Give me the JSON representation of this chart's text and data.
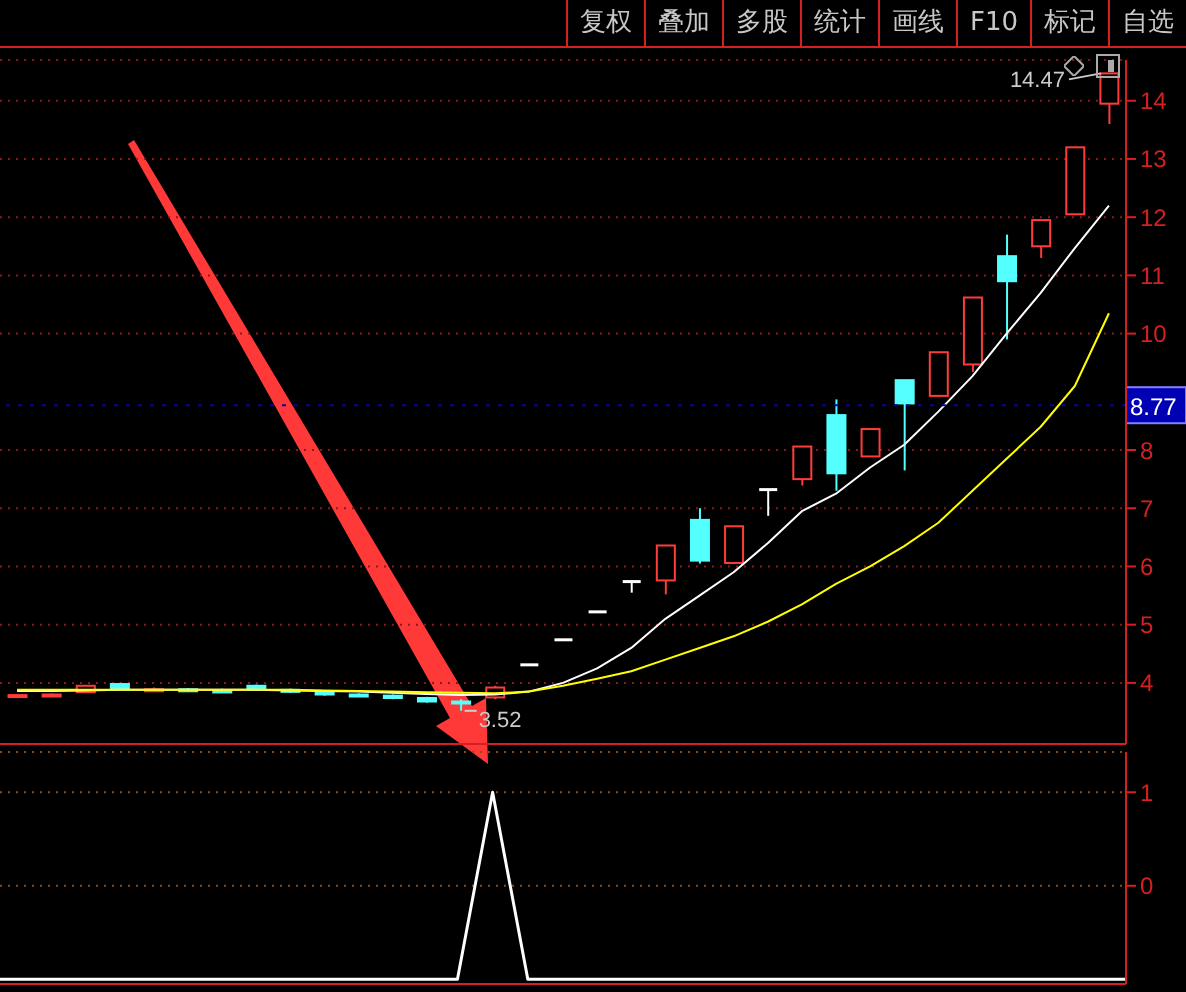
{
  "chart_data": [
    {
      "type": "candlestick",
      "categories": [
        null,
        null,
        null,
        null,
        null,
        null,
        null,
        null,
        null,
        null,
        null,
        null,
        null,
        null,
        null,
        null,
        null,
        null,
        null,
        null,
        null,
        null,
        null,
        null,
        null,
        null,
        null,
        null,
        null,
        null,
        null,
        null,
        null
      ],
      "ohlc": [
        [
          3.76,
          3.8,
          3.74,
          3.79
        ],
        [
          3.79,
          3.82,
          3.76,
          3.8
        ],
        [
          3.84,
          3.96,
          3.83,
          3.95
        ],
        [
          3.98,
          4.0,
          3.88,
          3.9
        ],
        [
          3.88,
          3.92,
          3.85,
          3.89
        ],
        [
          3.89,
          3.91,
          3.86,
          3.88
        ],
        [
          3.87,
          3.9,
          3.84,
          3.86
        ],
        [
          3.95,
          3.97,
          3.87,
          3.88
        ],
        [
          3.88,
          3.9,
          3.83,
          3.86
        ],
        [
          3.84,
          3.86,
          3.78,
          3.8
        ],
        [
          3.8,
          3.82,
          3.76,
          3.78
        ],
        [
          3.78,
          3.8,
          3.72,
          3.74
        ],
        [
          3.74,
          3.76,
          3.66,
          3.68
        ],
        [
          3.68,
          3.72,
          3.52,
          3.66
        ],
        [
          3.75,
          3.95,
          3.72,
          3.92
        ],
        [
          4.31,
          4.31,
          4.31,
          4.31
        ],
        [
          4.74,
          4.74,
          4.74,
          4.74
        ],
        [
          5.22,
          5.22,
          5.22,
          5.22
        ],
        [
          5.74,
          5.74,
          5.55,
          5.74
        ],
        [
          5.76,
          6.36,
          5.52,
          6.36
        ],
        [
          6.8,
          7.0,
          6.05,
          6.1
        ],
        [
          6.06,
          6.7,
          6.05,
          6.69
        ],
        [
          7.32,
          7.32,
          6.87,
          7.32
        ],
        [
          7.5,
          8.06,
          7.39,
          8.06
        ],
        [
          8.6,
          8.87,
          7.3,
          7.6
        ],
        [
          7.89,
          8.36,
          7.89,
          8.36
        ],
        [
          9.2,
          9.2,
          7.65,
          8.8
        ],
        [
          8.93,
          9.68,
          8.93,
          9.68
        ],
        [
          9.47,
          10.62,
          9.34,
          10.62
        ],
        [
          11.33,
          11.7,
          9.9,
          10.9
        ],
        [
          11.5,
          11.95,
          11.3,
          11.95
        ],
        [
          12.05,
          13.2,
          12.05,
          13.2
        ],
        [
          13.95,
          14.47,
          13.6,
          14.47
        ]
      ],
      "series": [
        {
          "type": "line",
          "color": "#ffffff",
          "values": [
            3.86,
            3.86,
            3.87,
            3.88,
            3.88,
            3.88,
            3.88,
            3.88,
            3.87,
            3.86,
            3.85,
            3.83,
            3.81,
            3.79,
            3.8,
            3.85,
            4.0,
            4.25,
            4.6,
            5.1,
            5.5,
            5.9,
            6.4,
            6.95,
            7.25,
            7.7,
            8.09,
            8.66,
            9.27,
            10.0,
            10.7,
            11.47,
            12.2
          ]
        },
        {
          "type": "line",
          "color": "#ffff00",
          "values": [
            3.88,
            3.88,
            3.88,
            3.88,
            3.88,
            3.88,
            3.88,
            3.88,
            3.88,
            3.87,
            3.86,
            3.85,
            3.84,
            3.83,
            3.82,
            3.85,
            3.95,
            4.07,
            4.2,
            4.4,
            4.6,
            4.8,
            5.05,
            5.35,
            5.7,
            6.0,
            6.35,
            6.75,
            7.3,
            7.85,
            8.4,
            9.1,
            10.35
          ]
        }
      ],
      "colors": [
        "#ff3c3c",
        "#ff3c3c",
        "#ff3c3c",
        "#54ffff",
        "#ff3c3c",
        "#54ffff",
        "#54ffff",
        "#54ffff",
        "#54ffff",
        "#54ffff",
        "#54ffff",
        "#54ffff",
        "#54ffff",
        "#54ffff",
        "#ff3c3c",
        "#ffffff",
        "#ffffff",
        "#ffffff",
        "#ffffff",
        "#ff3c3c",
        "#54ffff",
        "#ff3c3c",
        "#ffffff",
        "#ff3c3c",
        "#54ffff",
        "#ff3c3c",
        "#54ffff",
        "#ff3c3c",
        "#ff3c3c",
        "#54ffff",
        "#ff3c3c",
        "#ff3c3c",
        "#ff3c3c"
      ],
      "ylim": [
        2.95,
        14.7
      ],
      "yticks": [
        4,
        5,
        6,
        7,
        8,
        10,
        11,
        12,
        13,
        14
      ],
      "grid": "y",
      "tick_labels": "y",
      "legend": false,
      "ref_lines": [
        {
          "axis": "y",
          "value": 8.77,
          "label": "8.77",
          "color": "#0000b4"
        }
      ],
      "annotations": [
        "14.47",
        "3.52",
        "复权",
        "叠加",
        "多股",
        "统计",
        "画线",
        "F10",
        "标记",
        "自选"
      ]
    },
    {
      "type": "line",
      "categories": [
        null,
        null,
        null,
        null,
        null,
        null,
        null,
        null,
        null,
        null,
        null,
        null,
        null,
        null,
        null,
        null,
        null,
        null,
        null,
        null,
        null,
        null,
        null,
        null,
        null,
        null,
        null,
        null,
        null,
        null,
        null,
        null,
        null
      ],
      "series": [
        {
          "color": "#ffffff",
          "values": [
            -1,
            -1,
            -1,
            -1,
            -1,
            -1,
            -1,
            -1,
            -1,
            -1,
            -1,
            -1,
            -1,
            -1,
            1,
            -1,
            -1,
            -1,
            -1,
            -1,
            -1,
            -1,
            -1,
            -1,
            -1,
            -1,
            -1,
            -1,
            -1,
            -1,
            -1,
            -1,
            -1
          ]
        }
      ],
      "ylim": [
        -1.05,
        1.43
      ],
      "yticks": [
        1,
        0
      ],
      "grid": "y",
      "tick_labels": "y",
      "legend": false
    }
  ]
}
